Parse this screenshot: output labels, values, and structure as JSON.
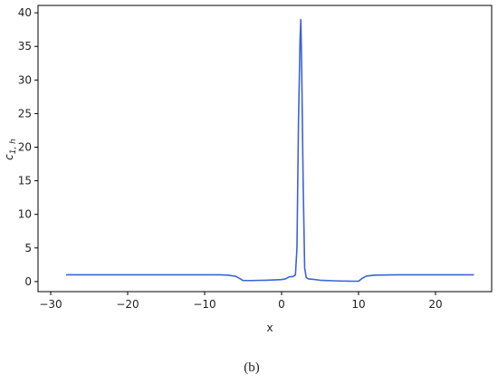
{
  "chart_data": {
    "type": "line",
    "xlabel": "x",
    "ylabel": {
      "main": "c",
      "sub": "1, h"
    },
    "caption": "(b)",
    "x": [
      -28,
      -20,
      -10,
      -8,
      -7,
      -6,
      -5.5,
      -5,
      -4,
      -2,
      0,
      0.5,
      1,
      1.5,
      1.8,
      2,
      2.2,
      2.4,
      2.5,
      2.6,
      2.8,
      3,
      3.2,
      3.5,
      4,
      5,
      7,
      9,
      10,
      10.5,
      11,
      12,
      15,
      20,
      25
    ],
    "series": [
      {
        "color": "#3a63d8",
        "values": [
          1,
          1,
          1,
          1,
          0.95,
          0.8,
          0.5,
          0.15,
          0.15,
          0.2,
          0.3,
          0.4,
          0.7,
          0.75,
          1.0,
          5,
          24,
          36,
          39,
          33,
          15,
          2,
          0.6,
          0.4,
          0.35,
          0.2,
          0.1,
          0.05,
          0.05,
          0.5,
          0.8,
          0.95,
          1,
          1,
          1
        ]
      }
    ],
    "xlim": [
      -31.65,
      27.3
    ],
    "ylim": [
      -1.5,
      41.1
    ],
    "xticks": [
      {
        "value": -30,
        "label": "−30"
      },
      {
        "value": -20,
        "label": "−20"
      },
      {
        "value": -10,
        "label": "−10"
      },
      0,
      10,
      20
    ],
    "yticks": [
      0,
      5,
      10,
      15,
      20,
      25,
      30,
      35,
      40
    ]
  }
}
